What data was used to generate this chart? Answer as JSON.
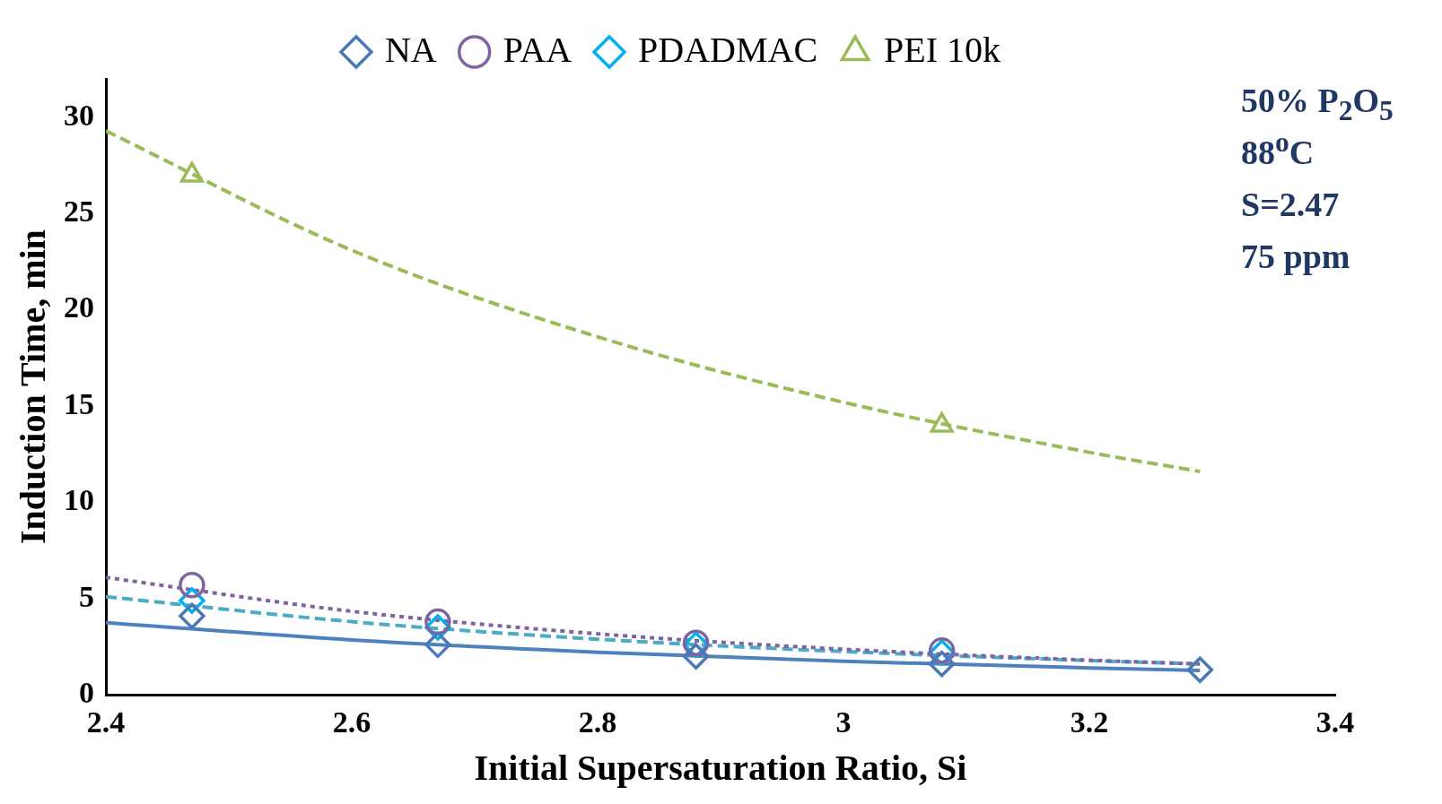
{
  "chart_data": {
    "type": "scatter",
    "xlabel": "Initial Supersaturation Ratio, Si",
    "ylabel": "Induction Time, min",
    "xlim": [
      2.4,
      3.4
    ],
    "xticks": [
      2.4,
      2.6,
      2.8,
      3,
      3.2,
      3.4
    ],
    "ylim": [
      0,
      32
    ],
    "yticks": [
      0,
      5,
      10,
      15,
      20,
      25,
      30
    ],
    "grid": false,
    "legend": "top",
    "annotations": [
      "50% P$_{2}$O$_{5}$",
      "88$^{o}$C",
      "S=2.47",
      "75 ppm"
    ],
    "series": [
      {
        "type": "line",
        "color": "#4f81bd",
        "line_style": "solid",
        "x": [
          2.4,
          2.6,
          2.8,
          3.0,
          3.2,
          3.29
        ],
        "values": [
          3.75,
          2.85,
          2.21,
          1.74,
          1.4,
          1.27
        ]
      },
      {
        "type": "line",
        "color": "#8064a2",
        "line_style": "dotted",
        "x": [
          2.4,
          2.6,
          2.8,
          3.0,
          3.2,
          3.29
        ],
        "values": [
          6.1,
          4.34,
          3.17,
          2.37,
          1.8,
          1.6
        ]
      },
      {
        "type": "line",
        "color": "#4bacc6",
        "line_style": "dashed",
        "x": [
          2.4,
          2.6,
          2.8,
          3.0,
          3.2,
          3.29
        ],
        "values": [
          5.1,
          3.8,
          2.89,
          2.25,
          1.78,
          1.6
        ]
      },
      {
        "type": "line",
        "color": "#9bbb59",
        "line_style": "dashed",
        "x": [
          2.4,
          2.6,
          2.8,
          3.0,
          3.2,
          3.29
        ],
        "values": [
          29.3,
          23.1,
          18.6,
          15.2,
          12.6,
          11.6
        ]
      },
      {
        "type": "scatter",
        "name": "NA",
        "color": "#4a7ab5",
        "marker": "diamond",
        "x": [
          2.47,
          2.67,
          2.88,
          3.08,
          3.29
        ],
        "values": [
          4.1,
          2.6,
          2.0,
          1.6,
          1.3
        ]
      },
      {
        "type": "scatter",
        "name": "PAA",
        "color": "#8064a2",
        "marker": "circle",
        "x": [
          2.47,
          2.67,
          2.88,
          3.08
        ],
        "values": [
          5.7,
          3.8,
          2.7,
          2.3
        ]
      },
      {
        "type": "scatter",
        "name": "PDADMAC",
        "color": "#00b0f0",
        "marker": "diamond",
        "x": [
          2.47,
          2.67,
          2.88,
          3.08
        ],
        "values": [
          4.9,
          3.5,
          2.6,
          2.2
        ]
      },
      {
        "type": "scatter",
        "name": "PEI 10k",
        "color": "#9bbb59",
        "marker": "triangle",
        "x": [
          2.47,
          3.08
        ],
        "values": [
          27.0,
          14.0
        ]
      }
    ]
  }
}
